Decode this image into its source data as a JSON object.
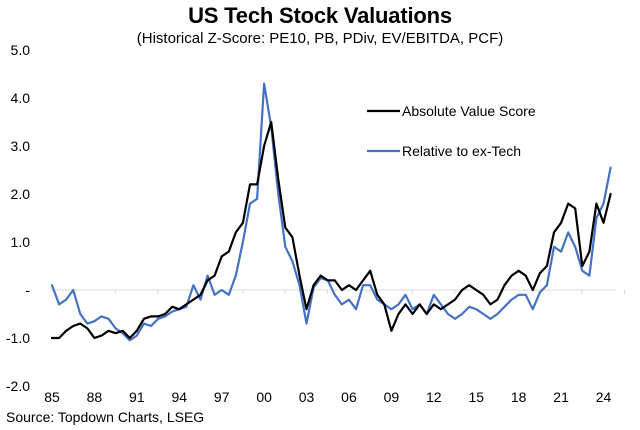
{
  "chart_data": {
    "type": "line",
    "title": "US Tech Stock Valuations",
    "subtitle": "(Historical Z-Score: PE10, PB, PDiv, EV/EBITDA, PCF)",
    "source": "Source: Topdown Charts, LSEG",
    "xlabel": "",
    "ylabel": "",
    "ylim": [
      -2.0,
      5.0
    ],
    "xlim": [
      1985,
      2024.6
    ],
    "yticks": [
      5.0,
      4.0,
      3.0,
      2.0,
      1.0,
      0,
      -1.0,
      -2.0
    ],
    "ytick_labels": [
      "5.0",
      "4.0",
      "3.0",
      "2.0",
      "1.0",
      "-",
      "-1.0",
      "-2.0"
    ],
    "xticks": [
      1985,
      1988,
      1991,
      1994,
      1997,
      2000,
      2003,
      2006,
      2009,
      2012,
      2015,
      2018,
      2021,
      2024
    ],
    "xtick_labels": [
      "85",
      "88",
      "91",
      "94",
      "97",
      "00",
      "03",
      "06",
      "09",
      "12",
      "15",
      "18",
      "21",
      "24"
    ],
    "grid": false,
    "zero_line": true,
    "legend_position": "top-right",
    "x": [
      1985.0,
      1985.5,
      1986.0,
      1986.5,
      1987.0,
      1987.5,
      1988.0,
      1988.5,
      1989.0,
      1989.5,
      1990.0,
      1990.5,
      1991.0,
      1991.5,
      1992.0,
      1992.5,
      1993.0,
      1993.5,
      1994.0,
      1994.5,
      1995.0,
      1995.5,
      1996.0,
      1996.5,
      1997.0,
      1997.5,
      1998.0,
      1998.5,
      1999.0,
      1999.5,
      2000.0,
      2000.5,
      2001.0,
      2001.5,
      2002.0,
      2002.5,
      2003.0,
      2003.5,
      2004.0,
      2004.5,
      2005.0,
      2005.5,
      2006.0,
      2006.5,
      2007.0,
      2007.5,
      2008.0,
      2008.5,
      2009.0,
      2009.5,
      2010.0,
      2010.5,
      2011.0,
      2011.5,
      2012.0,
      2012.5,
      2013.0,
      2013.5,
      2014.0,
      2014.5,
      2015.0,
      2015.5,
      2016.0,
      2016.5,
      2017.0,
      2017.5,
      2018.0,
      2018.5,
      2019.0,
      2019.5,
      2020.0,
      2020.5,
      2021.0,
      2021.5,
      2022.0,
      2022.5,
      2023.0,
      2023.5,
      2024.0,
      2024.5
    ],
    "series": [
      {
        "name": "Absolute Value Score",
        "color": "#000000",
        "values": [
          -1.0,
          -1.0,
          -0.85,
          -0.75,
          -0.7,
          -0.8,
          -1.0,
          -0.95,
          -0.85,
          -0.9,
          -0.85,
          -1.0,
          -0.85,
          -0.6,
          -0.55,
          -0.55,
          -0.5,
          -0.35,
          -0.4,
          -0.3,
          -0.2,
          -0.1,
          0.2,
          0.3,
          0.7,
          0.8,
          1.2,
          1.4,
          2.2,
          2.2,
          3.0,
          3.5,
          2.3,
          1.3,
          1.1,
          0.3,
          -0.4,
          0.1,
          0.3,
          0.2,
          0.2,
          0.0,
          0.1,
          0.0,
          0.2,
          0.4,
          -0.1,
          -0.3,
          -0.85,
          -0.5,
          -0.3,
          -0.5,
          -0.3,
          -0.5,
          -0.3,
          -0.4,
          -0.3,
          -0.2,
          0.0,
          0.1,
          0.0,
          -0.1,
          -0.3,
          -0.2,
          0.1,
          0.3,
          0.4,
          0.3,
          0.0,
          0.35,
          0.5,
          1.2,
          1.4,
          1.8,
          1.7,
          0.5,
          0.8,
          1.8,
          1.4,
          2.0
        ]
      },
      {
        "name": "Relative to ex-Tech",
        "color": "#4472C4",
        "values": [
          0.1,
          -0.3,
          -0.2,
          0.0,
          -0.5,
          -0.7,
          -0.65,
          -0.55,
          -0.6,
          -0.8,
          -0.9,
          -1.05,
          -0.95,
          -0.7,
          -0.75,
          -0.6,
          -0.55,
          -0.45,
          -0.4,
          -0.35,
          0.1,
          -0.2,
          0.3,
          -0.1,
          0.0,
          -0.1,
          0.3,
          1.0,
          1.8,
          1.9,
          4.3,
          3.4,
          2.0,
          0.9,
          0.6,
          0.1,
          -0.7,
          0.05,
          0.25,
          0.2,
          -0.1,
          -0.3,
          -0.2,
          -0.4,
          0.1,
          0.1,
          -0.2,
          -0.3,
          -0.4,
          -0.3,
          -0.1,
          -0.4,
          -0.3,
          -0.5,
          -0.1,
          -0.3,
          -0.5,
          -0.6,
          -0.5,
          -0.35,
          -0.4,
          -0.5,
          -0.6,
          -0.5,
          -0.35,
          -0.2,
          -0.1,
          -0.1,
          -0.4,
          -0.05,
          0.1,
          0.9,
          0.8,
          1.2,
          0.9,
          0.4,
          0.3,
          1.5,
          1.8,
          2.55
        ]
      }
    ]
  }
}
